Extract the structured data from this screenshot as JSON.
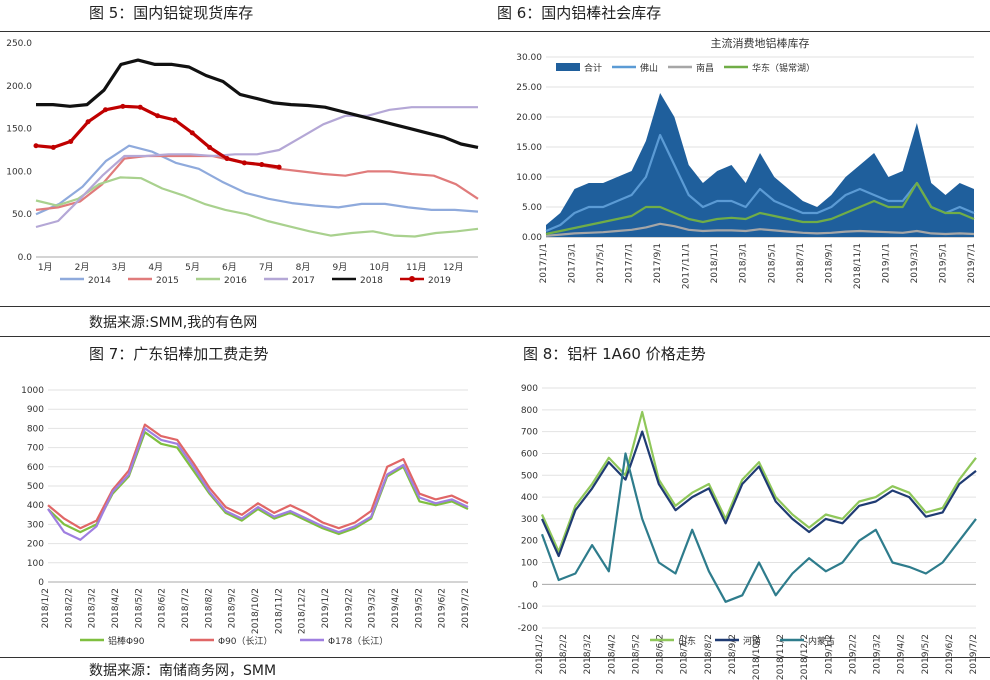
{
  "figures": {
    "fig5_title": "图 5：国内铝锭现货库存",
    "fig6_title": "图 6：国内铝棒社会库存",
    "fig7_title": "图 7：广东铝棒加工费走势",
    "fig8_title": "图 8：铝杆 1A60 价格走势",
    "source1": "数据来源:SMM,我的有色网",
    "source2": "数据来源：南储商务网，SMM"
  },
  "colors": {
    "fig5": [
      "#8faadc",
      "#e07b7b",
      "#a9d18e",
      "#b4a7d6",
      "#111111",
      "#c00000"
    ],
    "fig6": [
      "#1f5f9c",
      "#5b9bd5",
      "#a6a6a6",
      "#70ad47"
    ],
    "fig7": [
      "#7fbf3f",
      "#e06666",
      "#9f7fe0"
    ],
    "fig8": [
      "#8fc75a",
      "#1f3b73",
      "#2e7c8c"
    ]
  },
  "chart_data": [
    {
      "type": "line",
      "title": "",
      "x_labels": [
        "1月",
        "2月",
        "3月",
        "4月",
        "5月",
        "6月",
        "7月",
        "8月",
        "9月",
        "10月",
        "11月",
        "12月"
      ],
      "ylim": [
        0,
        250
      ],
      "y_ticks": [
        "0.0",
        "50.0",
        "100.0",
        "150.0",
        "200.0",
        "250.0"
      ],
      "legend_position": "bottom",
      "series": [
        {
          "name": "2014",
          "values": [
            50,
            62,
            82,
            112,
            130,
            123,
            110,
            103,
            88,
            75,
            68,
            63,
            60,
            58,
            62,
            62,
            58,
            55,
            55,
            53
          ]
        },
        {
          "name": "2015",
          "values": [
            55,
            58,
            65,
            85,
            115,
            118,
            118,
            118,
            118,
            112,
            108,
            103,
            100,
            97,
            95,
            100,
            100,
            97,
            95,
            85,
            68
          ]
        },
        {
          "name": "2016",
          "values": [
            66,
            60,
            68,
            85,
            93,
            92,
            80,
            72,
            62,
            55,
            50,
            42,
            36,
            30,
            25,
            28,
            30,
            25,
            24,
            28,
            30,
            33
          ]
        },
        {
          "name": "2017",
          "values": [
            35,
            42,
            68,
            95,
            118,
            118,
            120,
            120,
            118,
            120,
            120,
            125,
            140,
            155,
            165,
            165,
            172,
            175,
            175,
            175,
            175
          ]
        },
        {
          "name": "2018",
          "values": [
            178,
            178,
            176,
            178,
            195,
            225,
            230,
            225,
            225,
            222,
            212,
            205,
            190,
            185,
            180,
            178,
            177,
            175,
            170,
            165,
            160,
            155,
            150,
            145,
            140,
            132,
            128
          ]
        },
        {
          "name": "2019",
          "values": [
            130,
            128,
            135,
            158,
            172,
            176,
            175,
            165,
            160,
            145,
            128,
            115,
            110,
            108,
            105
          ]
        }
      ]
    },
    {
      "type": "area",
      "title": "主流消费地铝棒库存",
      "x_labels": [
        "2017/1/1",
        "2017/3/1",
        "2017/5/1",
        "2017/7/1",
        "2017/9/1",
        "2017/11/1",
        "2018/1/1",
        "2018/3/1",
        "2018/5/1",
        "2018/7/1",
        "2018/9/1",
        "2018/11/1",
        "2019/1/1",
        "2019/3/1",
        "2019/5/1",
        "2019/7/1"
      ],
      "ylim": [
        0,
        30
      ],
      "y_ticks": [
        "0.00",
        "5.00",
        "10.00",
        "15.00",
        "20.00",
        "25.00",
        "30.00"
      ],
      "legend_position": "top",
      "series": [
        {
          "name": "合计",
          "values": [
            2,
            4,
            8,
            9,
            9,
            10,
            11,
            16,
            24,
            20,
            12,
            9,
            11,
            12,
            9,
            14,
            10,
            8,
            6,
            5,
            7,
            10,
            12,
            14,
            10,
            11,
            19,
            9,
            7,
            9,
            8
          ]
        },
        {
          "name": "佛山",
          "values": [
            1,
            2,
            4,
            5,
            5,
            6,
            7,
            10,
            17,
            12,
            7,
            5,
            6,
            6,
            5,
            8,
            6,
            5,
            4,
            4,
            5,
            7,
            8,
            7,
            6,
            6,
            9,
            5,
            4,
            5,
            4
          ]
        },
        {
          "name": "南昌",
          "values": [
            0.2,
            0.4,
            0.6,
            0.7,
            0.8,
            1,
            1.2,
            1.6,
            2.2,
            1.8,
            1.2,
            1,
            1.1,
            1.1,
            1,
            1.3,
            1.1,
            0.9,
            0.7,
            0.6,
            0.7,
            0.9,
            1,
            0.9,
            0.8,
            0.7,
            1,
            0.6,
            0.5,
            0.6,
            0.5
          ]
        },
        {
          "name": "华东（锡常湖）",
          "values": [
            0.5,
            1,
            1.5,
            2,
            2.5,
            3,
            3.5,
            5,
            5,
            4,
            3,
            2.5,
            3,
            3.2,
            3,
            4,
            3.5,
            3,
            2.5,
            2.5,
            3,
            4,
            5,
            6,
            5,
            5,
            9,
            5,
            4,
            4,
            3
          ]
        }
      ]
    },
    {
      "type": "line",
      "title": "",
      "x_labels": [
        "2018/1/2",
        "2018/2/2",
        "2018/3/2",
        "2018/4/2",
        "2018/5/2",
        "2018/6/2",
        "2018/7/2",
        "2018/8/2",
        "2018/9/2",
        "2018/10/2",
        "2018/11/2",
        "2018/12/2",
        "2019/1/2",
        "2019/2/2",
        "2019/3/2",
        "2019/4/2",
        "2019/5/2",
        "2019/6/2",
        "2019/7/2"
      ],
      "ylim": [
        0,
        1000
      ],
      "y_ticks": [
        "0",
        "100",
        "200",
        "300",
        "400",
        "500",
        "600",
        "700",
        "800",
        "900",
        "1000"
      ],
      "legend_position": "bottom",
      "series": [
        {
          "name": "铝棒Φ90",
          "values": [
            380,
            300,
            260,
            300,
            460,
            550,
            780,
            720,
            700,
            580,
            460,
            360,
            320,
            380,
            330,
            360,
            320,
            280,
            250,
            280,
            330,
            550,
            600,
            420,
            400,
            420,
            380
          ]
        },
        {
          "name": "Φ90（长江）",
          "values": [
            400,
            330,
            280,
            320,
            480,
            580,
            820,
            760,
            740,
            620,
            490,
            390,
            350,
            410,
            360,
            400,
            360,
            310,
            280,
            310,
            370,
            600,
            640,
            460,
            430,
            450,
            410
          ]
        },
        {
          "name": "Φ178（长江）",
          "values": [
            380,
            260,
            220,
            290,
            470,
            560,
            800,
            740,
            720,
            600,
            470,
            370,
            330,
            390,
            340,
            370,
            330,
            290,
            260,
            290,
            340,
            560,
            610,
            440,
            410,
            430,
            390
          ]
        }
      ]
    },
    {
      "type": "line",
      "title": "",
      "x_labels": [
        "2018/1/2",
        "2018/2/2",
        "2018/3/2",
        "2018/4/2",
        "2018/5/2",
        "2018/6/2",
        "2018/7/2",
        "2018/8/2",
        "2018/9/2",
        "2018/10/2",
        "2018/11/2",
        "2018/12/2",
        "2019/1/2",
        "2019/2/2",
        "2019/3/2",
        "2019/4/2",
        "2019/5/2",
        "2019/6/2",
        "2019/7/2"
      ],
      "ylim": [
        -200,
        900
      ],
      "y_ticks": [
        "-200",
        "-100",
        "0",
        "100",
        "200",
        "300",
        "400",
        "500",
        "600",
        "700",
        "800",
        "900"
      ],
      "legend_position": "bottom",
      "series": [
        {
          "name": "山东",
          "values": [
            320,
            150,
            360,
            460,
            580,
            500,
            790,
            480,
            360,
            420,
            460,
            300,
            480,
            560,
            400,
            320,
            260,
            320,
            300,
            380,
            400,
            450,
            420,
            330,
            350,
            480,
            580
          ]
        },
        {
          "name": "河南",
          "values": [
            300,
            130,
            340,
            440,
            560,
            480,
            700,
            460,
            340,
            400,
            440,
            280,
            460,
            540,
            380,
            300,
            240,
            300,
            280,
            360,
            380,
            430,
            400,
            310,
            330,
            460,
            520
          ]
        },
        {
          "name": "内蒙古",
          "values": [
            230,
            20,
            50,
            180,
            60,
            600,
            300,
            100,
            50,
            250,
            60,
            -80,
            -50,
            100,
            -50,
            50,
            120,
            60,
            100,
            200,
            250,
            100,
            80,
            50,
            100,
            200,
            300
          ]
        }
      ]
    }
  ]
}
